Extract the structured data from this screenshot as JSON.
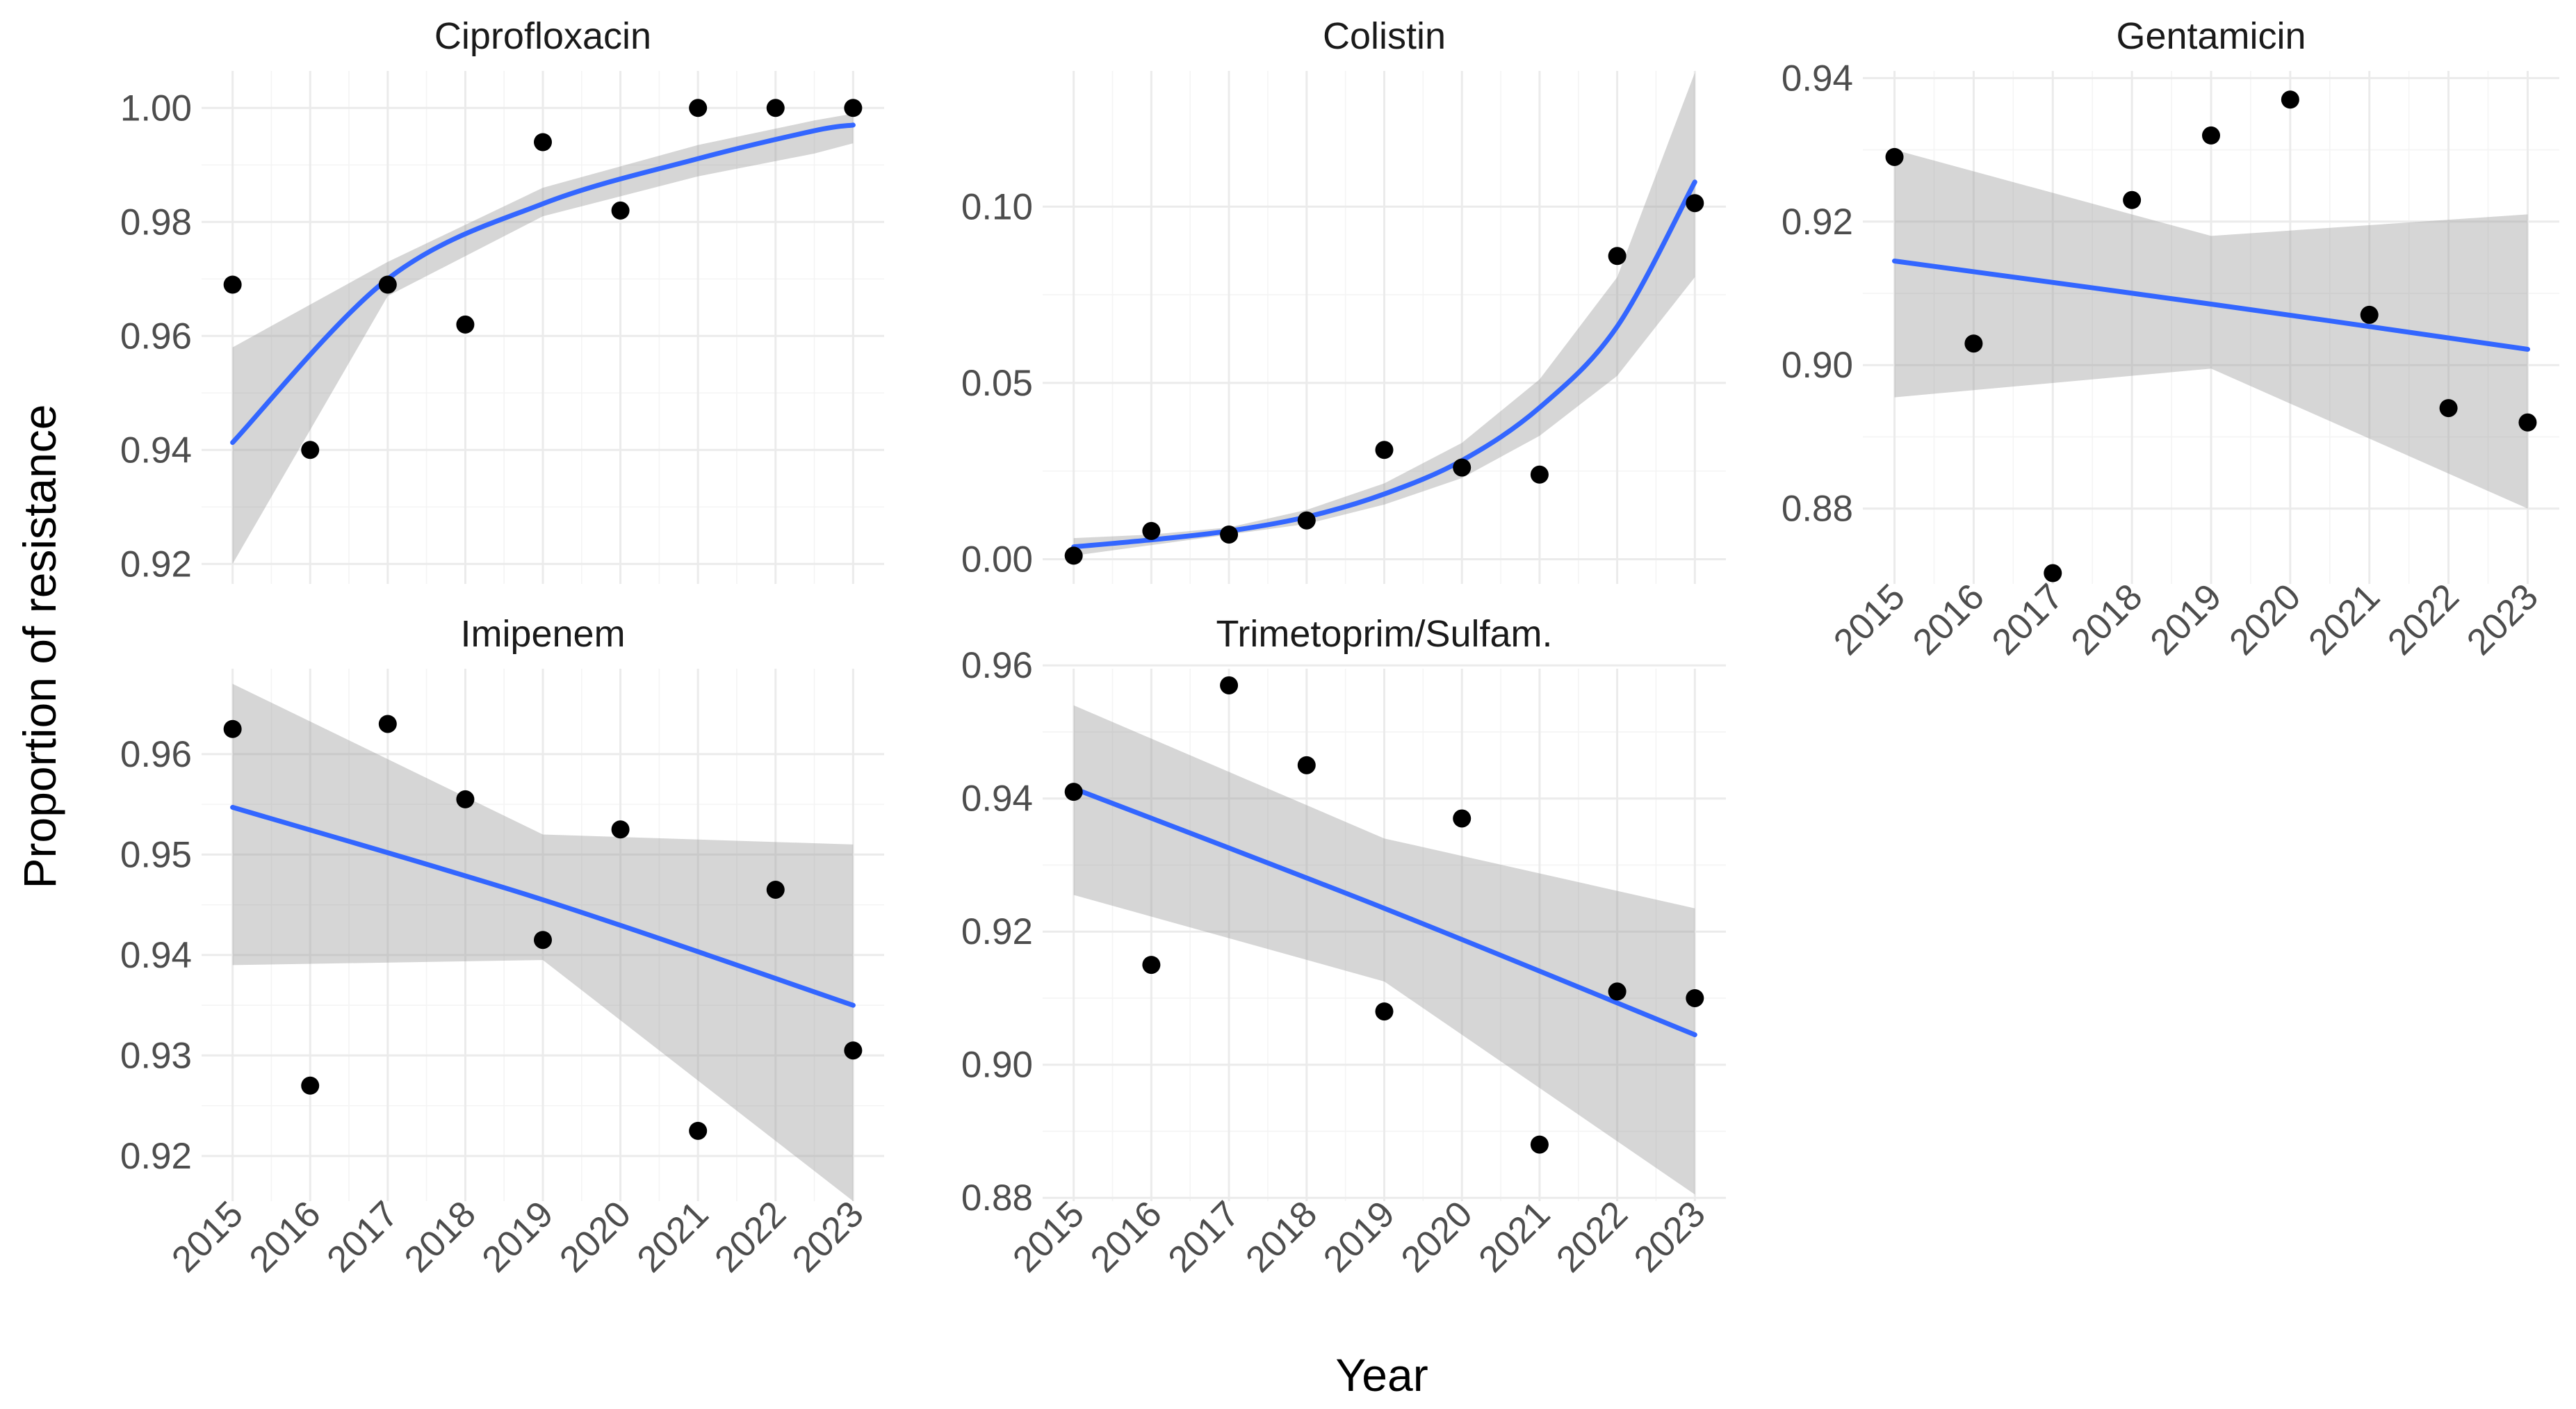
{
  "colors": {
    "trend_line": "#3366ff",
    "confidence_band": "#999999",
    "points": "#000000",
    "grid": "#ebebeb"
  },
  "chart_data": {
    "type": "scatter",
    "layout": "facet-grid-2x3",
    "xlabel": "Year",
    "ylabel": "Proportion of resistance",
    "x_tick_labels": [
      "2015",
      "2016",
      "2017",
      "2018",
      "2019",
      "2020",
      "2021",
      "2022",
      "2023"
    ],
    "panels": [
      {
        "title": "Ciprofloxacin",
        "x": [
          2015,
          2016,
          2017,
          2018,
          2019,
          2020,
          2021,
          2022,
          2023
        ],
        "y": [
          0.969,
          0.94,
          0.969,
          0.962,
          0.994,
          0.982,
          1.0,
          1.0,
          1.0
        ],
        "ylim": [
          0.9165,
          1.0065
        ],
        "yticks": [
          0.92,
          0.94,
          0.96,
          0.98,
          1.0
        ],
        "ytick_labels": [
          "0.92",
          "0.94",
          "0.96",
          "0.98",
          "1.00"
        ],
        "trend": {
          "fit": [
            0.9413,
            0.97,
            0.9832,
            0.9911,
            0.996,
            0.997
          ],
          "lower": [
            0.92,
            0.967,
            0.981,
            0.988,
            0.992,
            0.9938
          ],
          "upper": [
            0.958,
            0.973,
            0.986,
            0.9935,
            0.9978,
            0.999
          ],
          "at_x": [
            2015,
            2017,
            2019,
            2021,
            2022.5,
            2023
          ]
        }
      },
      {
        "title": "Colistin",
        "x": [
          2015,
          2016,
          2017,
          2018,
          2019,
          2020,
          2021,
          2022,
          2023
        ],
        "y": [
          0.001,
          0.008,
          0.007,
          0.011,
          0.031,
          0.026,
          0.024,
          0.086,
          0.101
        ],
        "ylim": [
          -0.007,
          0.1385
        ],
        "yticks": [
          0.0,
          0.05,
          0.1
        ],
        "ytick_labels": [
          "0.00",
          "0.05",
          "0.10"
        ],
        "trend": {
          "fit": [
            0.0035,
            0.0055,
            0.008,
            0.012,
            0.0185,
            0.028,
            0.043,
            0.066,
            0.107
          ],
          "lower": [
            0.001,
            0.004,
            0.007,
            0.01,
            0.0155,
            0.023,
            0.035,
            0.052,
            0.08
          ],
          "upper": [
            0.006,
            0.007,
            0.009,
            0.014,
            0.0215,
            0.033,
            0.051,
            0.08,
            0.138
          ],
          "at_x": [
            2015,
            2016,
            2017,
            2018,
            2019,
            2020,
            2021,
            2022,
            2023
          ]
        }
      },
      {
        "title": "Gentamicin",
        "x": [
          2015,
          2016,
          2017,
          2018,
          2019,
          2020,
          2021,
          2022,
          2023
        ],
        "y": [
          0.929,
          0.903,
          0.871,
          0.923,
          0.932,
          0.937,
          0.907,
          0.894,
          0.892
        ],
        "ylim": [
          0.8695,
          0.941
        ],
        "yticks": [
          0.88,
          0.9,
          0.92,
          0.94
        ],
        "ytick_labels": [
          "0.88",
          "0.90",
          "0.92",
          "0.94"
        ],
        "trend": {
          "fit": [
            0.9145,
            0.9085,
            0.9022
          ],
          "lower": [
            0.8955,
            0.8995,
            0.88
          ],
          "upper": [
            0.93,
            0.918,
            0.921
          ],
          "at_x": [
            2015,
            2019,
            2023
          ]
        }
      },
      {
        "title": "Imipenem",
        "x": [
          2015,
          2016,
          2017,
          2018,
          2019,
          2020,
          2021,
          2022,
          2023
        ],
        "y": [
          0.9625,
          0.927,
          0.963,
          0.9555,
          0.9415,
          0.9525,
          0.9225,
          0.9465,
          0.9305
        ],
        "ylim": [
          0.9155,
          0.9685
        ],
        "yticks": [
          0.92,
          0.93,
          0.94,
          0.95,
          0.96
        ],
        "ytick_labels": [
          "0.92",
          "0.93",
          "0.94",
          "0.95",
          "0.96"
        ],
        "trend": {
          "fit": [
            0.9547,
            0.9455,
            0.935
          ],
          "lower": [
            0.939,
            0.9395,
            0.9155
          ],
          "upper": [
            0.967,
            0.952,
            0.951
          ],
          "at_x": [
            2015,
            2019,
            2023
          ]
        }
      },
      {
        "title": "Trimetoprim/Sulfam.",
        "x": [
          2015,
          2016,
          2017,
          2018,
          2019,
          2020,
          2021,
          2022,
          2023
        ],
        "y": [
          0.941,
          0.915,
          0.957,
          0.945,
          0.908,
          0.937,
          0.888,
          0.911,
          0.91
        ],
        "ylim": [
          0.8795,
          0.9595
        ],
        "yticks": [
          0.88,
          0.9,
          0.92,
          0.94,
          0.96
        ],
        "ytick_labels": [
          "0.88",
          "0.90",
          "0.92",
          "0.94",
          "0.96"
        ],
        "trend": {
          "fit": [
            0.9415,
            0.9235,
            0.9045
          ],
          "lower": [
            0.9255,
            0.9125,
            0.8805
          ],
          "upper": [
            0.954,
            0.934,
            0.9235
          ],
          "at_x": [
            2015,
            2019,
            2023
          ]
        }
      }
    ]
  }
}
